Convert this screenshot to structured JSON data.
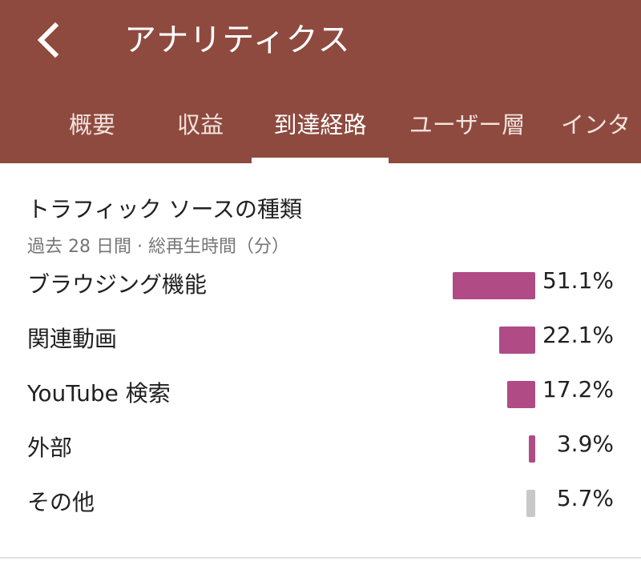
{
  "appbar": {
    "title": "アナリティクス",
    "back_icon": "chevron-left-icon"
  },
  "tabs": [
    {
      "label": "概要",
      "active": false
    },
    {
      "label": "収益",
      "active": false
    },
    {
      "label": "到達経路",
      "active": true
    },
    {
      "label": "ユーザー層",
      "active": false
    },
    {
      "label": "インタ",
      "active": false
    }
  ],
  "card": {
    "title": "トラフィック ソースの種類",
    "subtitle": "過去 28 日間 · 総再生時間（分）"
  },
  "colors": {
    "appbar": "#8e4a3f",
    "bar": "#b04b86",
    "other_bar": "#c8c8c8"
  },
  "chart_data": {
    "type": "bar",
    "categories": [
      "ブラウジング機能",
      "関連動画",
      "YouTube 検索",
      "外部",
      "その他"
    ],
    "values": [
      51.1,
      22.1,
      17.2,
      3.9,
      5.7
    ],
    "value_labels": [
      "51.1%",
      "22.1%",
      "17.2%",
      "3.9%",
      "5.7%"
    ],
    "title": "トラフィック ソースの種類",
    "unit": "%"
  }
}
